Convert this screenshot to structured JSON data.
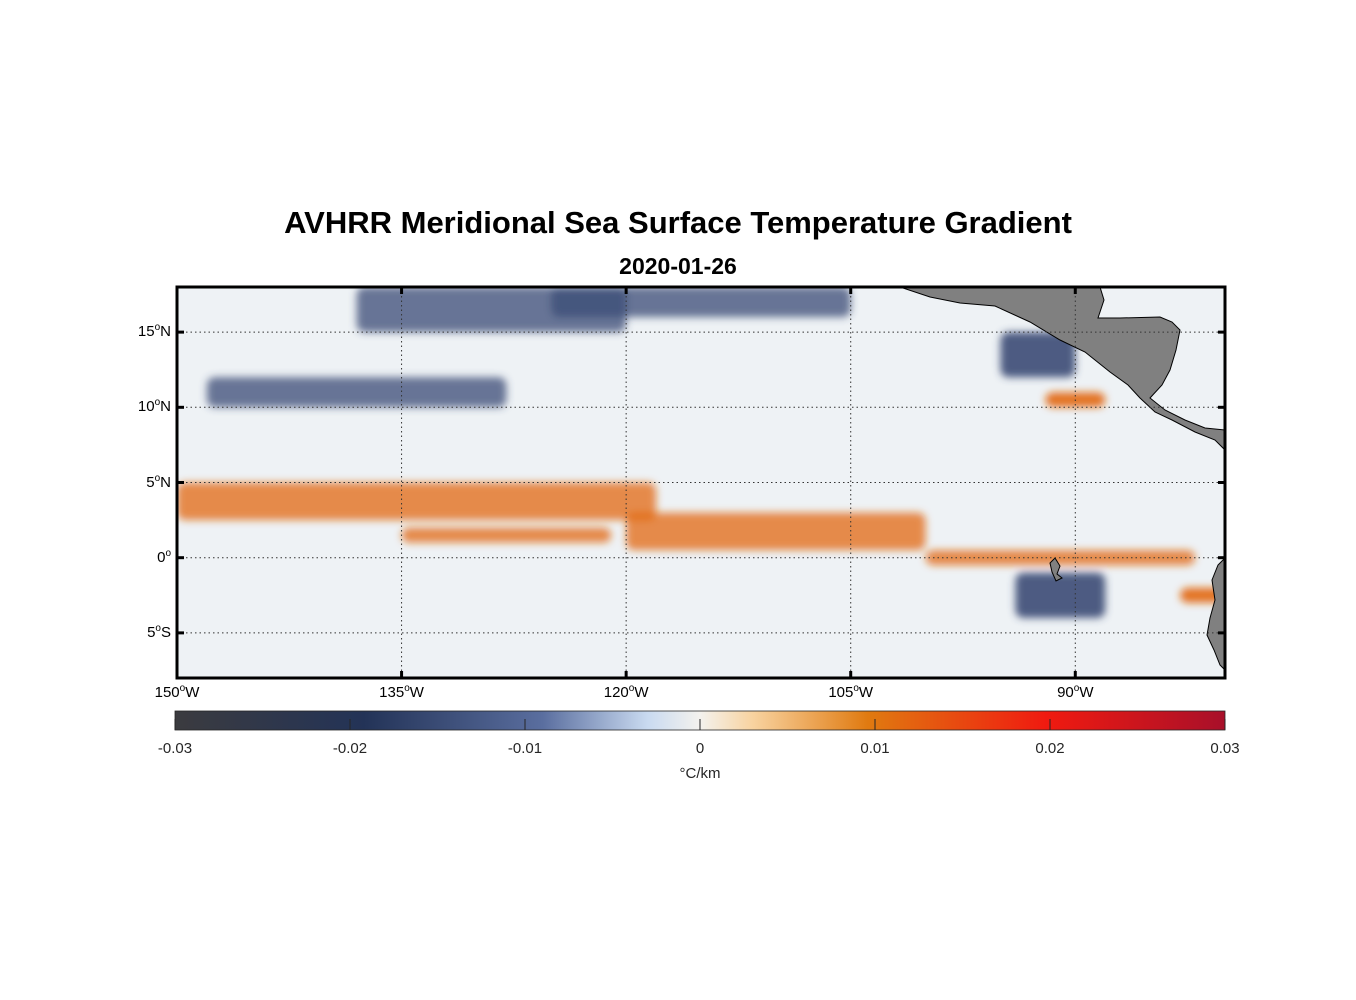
{
  "title": "AVHRR Meridional Sea Surface Temperature Gradient",
  "subtitle": "2020-01-26",
  "map": {
    "projection": "equirectangular",
    "lon_range": [
      -150,
      -80
    ],
    "lat_range": [
      -8,
      18
    ],
    "grid": "dotted",
    "land_color": "#808080",
    "lat_ticks": [
      {
        "value": 15,
        "deg": "15",
        "hemi": "N"
      },
      {
        "value": 10,
        "deg": "10",
        "hemi": "N"
      },
      {
        "value": 5,
        "deg": "5",
        "hemi": "N"
      },
      {
        "value": 0,
        "deg": "0",
        "hemi": ""
      },
      {
        "value": -5,
        "deg": "5",
        "hemi": "S"
      }
    ],
    "lon_ticks": [
      {
        "value": -150,
        "deg": "150",
        "hemi": "W"
      },
      {
        "value": -135,
        "deg": "135",
        "hemi": "W"
      },
      {
        "value": -120,
        "deg": "120",
        "hemi": "W"
      },
      {
        "value": -105,
        "deg": "105",
        "hemi": "W"
      },
      {
        "value": -90,
        "deg": "90",
        "hemi": "W"
      }
    ]
  },
  "colorbar": {
    "ticks": [
      "-0.03",
      "-0.02",
      "-0.01",
      "0",
      "0.01",
      "0.02",
      "0.03"
    ],
    "range": [
      -0.03,
      0.03
    ],
    "unit": "°C/km",
    "colors": [
      "#3b3b3f",
      "#233357",
      "#5a6e9f",
      "#c9daf0",
      "#f4f2ee",
      "#f8d3a0",
      "#e07a10",
      "#f01a10",
      "#a8102a"
    ]
  },
  "chart_data": {
    "type": "heatmap",
    "variable": "meridional SST gradient",
    "features": [
      {
        "kind": "positive-band",
        "lon": [
          -150,
          -118
        ],
        "lat": [
          2.5,
          5
        ]
      },
      {
        "kind": "positive-band",
        "lon": [
          -135,
          -121
        ],
        "lat": [
          1,
          2
        ]
      },
      {
        "kind": "positive-band",
        "lon": [
          -120,
          -100
        ],
        "lat": [
          0.5,
          3
        ]
      },
      {
        "kind": "positive-band",
        "lon": [
          -100,
          -82
        ],
        "lat": [
          -0.5,
          0.5
        ]
      },
      {
        "kind": "positive-spot",
        "lon": [
          -92,
          -88
        ],
        "lat": [
          10,
          11
        ]
      },
      {
        "kind": "positive-spot",
        "lon": [
          -83,
          -80
        ],
        "lat": [
          -3,
          -2
        ]
      },
      {
        "kind": "negative-band",
        "lon": [
          -148,
          -128
        ],
        "lat": [
          10,
          12
        ]
      },
      {
        "kind": "negative-band",
        "lon": [
          -138,
          -120
        ],
        "lat": [
          15,
          18
        ]
      },
      {
        "kind": "negative-band",
        "lon": [
          -125,
          -105
        ],
        "lat": [
          16,
          18
        ]
      },
      {
        "kind": "negative-spot",
        "lon": [
          -95,
          -90
        ],
        "lat": [
          12,
          15
        ]
      },
      {
        "kind": "negative-spot",
        "lon": [
          -94,
          -88
        ],
        "lat": [
          -4,
          -1
        ]
      }
    ]
  }
}
